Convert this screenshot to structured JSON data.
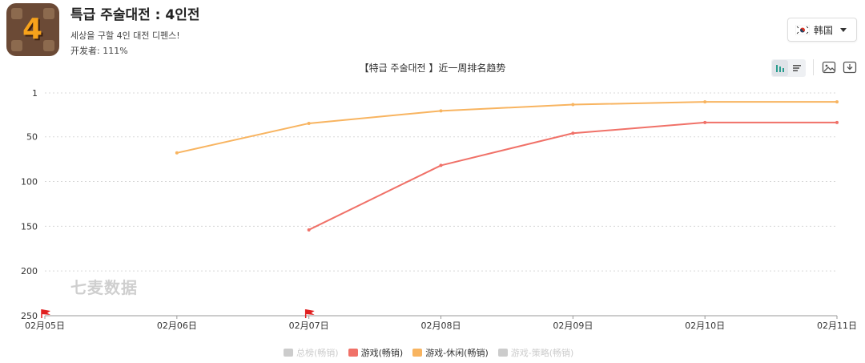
{
  "app": {
    "title": "특급 주술대전 : 4인전",
    "subtitle": "세상을 구할 4인 대전 디펜스!",
    "developer": "开发者: 111%",
    "icon": "game-app-icon",
    "icon_digit": "4"
  },
  "country": {
    "label": "韩国",
    "flag": "south-korea-flag"
  },
  "toolbar": {
    "icons": [
      "bar-chart-icon",
      "list-icon",
      "image-icon",
      "download-icon"
    ]
  },
  "watermark": "七麦数据",
  "colors": {
    "game_line": "#f07168",
    "casual_line": "#f8b460",
    "legend_inactive": "#cccccc",
    "grid": "#d8d8d8",
    "flag": "#e02020"
  },
  "chart_data": {
    "type": "line",
    "title": "【特급 주술대전 】近一周排名趋势",
    "x": [
      "02月05日",
      "02月06日",
      "02月07日",
      "02月08日",
      "02月09日",
      "02月10日",
      "02月11日"
    ],
    "y_ticks": [
      1,
      50,
      100,
      150,
      200,
      250
    ],
    "ylim": [
      1,
      250
    ],
    "y_inverted": true,
    "grid": true,
    "legend_position": "bottom",
    "series": [
      {
        "name": "总榜(畅销)",
        "color": "#cccccc",
        "active": false,
        "values": [
          null,
          null,
          null,
          null,
          null,
          null,
          null
        ]
      },
      {
        "name": "游戏(畅销)",
        "color": "#f07168",
        "active": true,
        "values": [
          null,
          null,
          154,
          82,
          46,
          34,
          34
        ]
      },
      {
        "name": "游戏-休闲(畅销)",
        "color": "#f8b460",
        "active": true,
        "values": [
          null,
          68,
          35,
          21,
          14,
          11,
          11
        ]
      },
      {
        "name": "游戏-策略(畅销)",
        "color": "#cccccc",
        "active": false,
        "values": [
          null,
          null,
          null,
          null,
          null,
          null,
          null
        ]
      }
    ],
    "event_markers": [
      "02月05日",
      "02月07日"
    ]
  }
}
